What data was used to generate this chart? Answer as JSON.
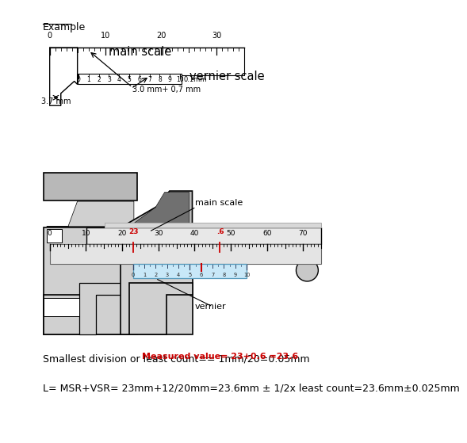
{
  "title_example": "Example",
  "main_scale_label": "main scale",
  "vernier_scale_label": "vernier scale",
  "main_scale_label2": "main scale",
  "vernier_label2": "vernier",
  "measured_value_text": "Measured value= 23+0.6 =23.6",
  "bottom_text1": "Smallest division or least count== 1mm/20=0.05mm",
  "bottom_text2": "L= MSR+VSR= 23mm+12/20mm=23.6mm ± 1/2x least count=23.6mm±0.025mm",
  "annotation1": "3.0 mm+ 0,7 mm",
  "annotation2": "3.7 mm",
  "vernier_unit": "0.1mm",
  "bg_color": "#ffffff",
  "body_color": "#d0d0d0",
  "body_color2": "#b8b8b8",
  "dark_gray": "#888888",
  "light_gray": "#e8e8e8",
  "blue_vernier": "#c8e8f8",
  "red_color": "#cc0000",
  "text_color": "#000000",
  "black": "#000000"
}
